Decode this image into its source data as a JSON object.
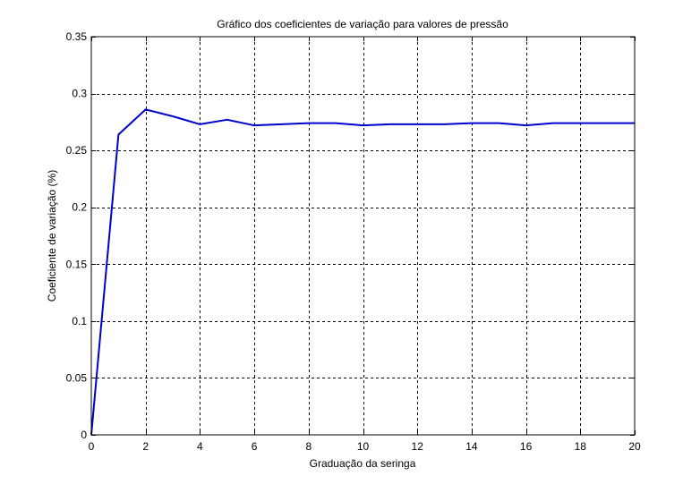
{
  "chart_data": {
    "type": "line",
    "title": "Gráfico dos coeficientes de variação para valores de pressão",
    "xlabel": "Graduação da seringa",
    "ylabel": "Coeficiente de variação (%)",
    "xlim": [
      0,
      20
    ],
    "ylim": [
      0,
      0.35
    ],
    "x_ticks": [
      0,
      2,
      4,
      6,
      8,
      10,
      12,
      14,
      16,
      18,
      20
    ],
    "x_tick_labels": [
      "0",
      "2",
      "4",
      "6",
      "8",
      "10",
      "12",
      "14",
      "16",
      "18",
      "20"
    ],
    "y_ticks": [
      0,
      0.05,
      0.1,
      0.15,
      0.2,
      0.25,
      0.3,
      0.35
    ],
    "y_tick_labels": [
      "0",
      "0.05",
      "0.1",
      "0.15",
      "0.2",
      "0.25",
      "0.3",
      "0.35"
    ],
    "grid": true,
    "series": [
      {
        "color": "#0000cc",
        "x": [
          0,
          1,
          2,
          3,
          4,
          5,
          6,
          7,
          8,
          9,
          10,
          11,
          12,
          13,
          14,
          15,
          16,
          17,
          18,
          19,
          20
        ],
        "y": [
          0,
          0.264,
          0.286,
          0.28,
          0.273,
          0.277,
          0.272,
          0.273,
          0.274,
          0.274,
          0.272,
          0.273,
          0.273,
          0.273,
          0.274,
          0.274,
          0.272,
          0.274,
          0.274,
          0.274,
          0.274
        ]
      }
    ]
  }
}
